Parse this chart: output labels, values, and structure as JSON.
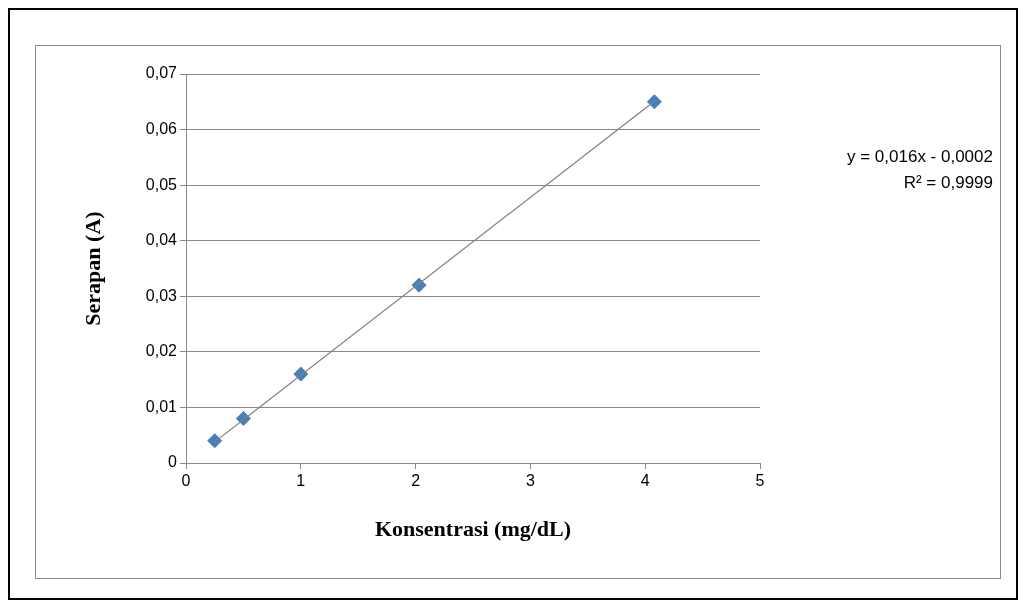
{
  "chart_data": {
    "type": "scatter",
    "xlabel": "Konsentrasi (mg/dL)",
    "ylabel": "Serapan (A)",
    "x": [
      0.25,
      0.5,
      1,
      2.03,
      4.08
    ],
    "series": [
      {
        "type": "scatter",
        "color": "#4a7ebb",
        "marker": "diamond",
        "values": [
          0.004,
          0.008,
          0.016,
          0.032,
          0.065
        ]
      },
      {
        "type": "line",
        "color": "#808080",
        "marker": "none",
        "x": [
          0.25,
          4.08
        ],
        "values": [
          0.0038,
          0.0651
        ]
      }
    ],
    "xlim": [
      0,
      5
    ],
    "xticks": [
      0,
      1,
      2,
      3,
      4,
      5
    ],
    "ylim": [
      0,
      0.07
    ],
    "yticks": [
      0,
      {
        "value": 0.01,
        "label": "0,01"
      },
      {
        "value": 0.02,
        "label": "0,02"
      },
      {
        "value": 0.03,
        "label": "0,03"
      },
      {
        "value": 0.04,
        "label": "0,04"
      },
      {
        "value": 0.05,
        "label": "0,05"
      },
      {
        "value": 0.06,
        "label": "0,06"
      },
      {
        "value": 0.07,
        "label": "0,07"
      }
    ],
    "grid": "y",
    "annotations": [
      "y = 0,016x - 0,0002",
      "R² = 0,9999"
    ]
  }
}
